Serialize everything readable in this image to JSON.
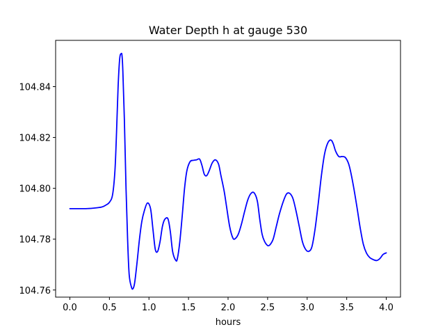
{
  "chart_data": {
    "type": "line",
    "title": "Water Depth h at gauge 530",
    "xlabel": "hours",
    "ylabel": "",
    "xlim": [
      -0.18,
      4.18
    ],
    "ylim": [
      104.7572,
      104.8582
    ],
    "grid": false,
    "legend": "none",
    "x_ticks": [
      0.0,
      0.5,
      1.0,
      1.5,
      2.0,
      2.5,
      3.0,
      3.5,
      4.0
    ],
    "x_tick_labels": [
      "0.0",
      "0.5",
      "1.0",
      "1.5",
      "2.0",
      "2.5",
      "3.0",
      "3.5",
      "4.0"
    ],
    "y_ticks": [
      104.76,
      104.78,
      104.8,
      104.82,
      104.84
    ],
    "y_tick_labels": [
      "104.76",
      "104.78",
      "104.80",
      "104.82",
      "104.84"
    ],
    "series": [
      {
        "color": "#0000ff",
        "x": [
          0.0,
          0.1,
          0.2,
          0.3,
          0.4,
          0.45,
          0.5,
          0.54,
          0.57,
          0.59,
          0.61,
          0.63,
          0.65,
          0.66,
          0.67,
          0.69,
          0.71,
          0.73,
          0.75,
          0.78,
          0.8,
          0.82,
          0.85,
          0.88,
          0.91,
          0.94,
          0.98,
          1.02,
          1.05,
          1.08,
          1.11,
          1.14,
          1.17,
          1.2,
          1.24,
          1.27,
          1.3,
          1.34,
          1.36,
          1.39,
          1.42,
          1.45,
          1.48,
          1.52,
          1.56,
          1.6,
          1.64,
          1.67,
          1.7,
          1.73,
          1.76,
          1.8,
          1.84,
          1.88,
          1.91,
          1.95,
          1.98,
          2.02,
          2.06,
          2.09,
          2.13,
          2.17,
          2.21,
          2.25,
          2.29,
          2.33,
          2.37,
          2.4,
          2.43,
          2.46,
          2.5,
          2.53,
          2.57,
          2.61,
          2.65,
          2.7,
          2.74,
          2.78,
          2.82,
          2.86,
          2.9,
          2.94,
          2.98,
          3.02,
          3.06,
          3.1,
          3.14,
          3.18,
          3.22,
          3.26,
          3.3,
          3.33,
          3.36,
          3.4,
          3.44,
          3.48,
          3.52,
          3.55,
          3.59,
          3.63,
          3.67,
          3.71,
          3.75,
          3.79,
          3.84,
          3.88,
          3.92,
          3.96,
          4.0
        ],
        "y": [
          104.792,
          104.792,
          104.792,
          104.7922,
          104.7926,
          104.7933,
          104.7945,
          104.7975,
          104.807,
          104.822,
          104.84,
          104.851,
          104.853,
          104.852,
          104.846,
          104.826,
          104.8,
          104.78,
          104.766,
          104.761,
          104.7606,
          104.763,
          104.771,
          104.78,
          104.787,
          104.791,
          104.7942,
          104.792,
          104.784,
          104.776,
          104.7752,
          104.779,
          104.785,
          104.7878,
          104.788,
          104.783,
          104.775,
          104.7716,
          104.7725,
          104.779,
          104.789,
          104.8,
          104.807,
          104.8105,
          104.811,
          104.8112,
          104.8115,
          104.809,
          104.8055,
          104.805,
          104.8068,
          104.81,
          104.8112,
          104.8095,
          104.805,
          104.799,
          104.793,
          104.785,
          104.7805,
          104.7802,
          104.782,
          104.786,
          104.791,
          104.7955,
          104.798,
          104.7982,
          104.795,
          104.788,
          104.782,
          104.7792,
          104.7775,
          104.7778,
          104.78,
          104.785,
          104.79,
          104.795,
          104.7978,
          104.798,
          104.796,
          104.791,
          104.785,
          104.779,
          104.776,
          104.7752,
          104.777,
          104.784,
          104.794,
          104.805,
          104.8135,
          104.8178,
          104.819,
          104.8175,
          104.8146,
          104.8125,
          104.8125,
          104.8122,
          104.81,
          104.8065,
          104.8,
          104.7925,
          104.7845,
          104.778,
          104.7745,
          104.7728,
          104.7719,
          104.7716,
          104.7724,
          104.774,
          104.7746
        ]
      }
    ]
  }
}
